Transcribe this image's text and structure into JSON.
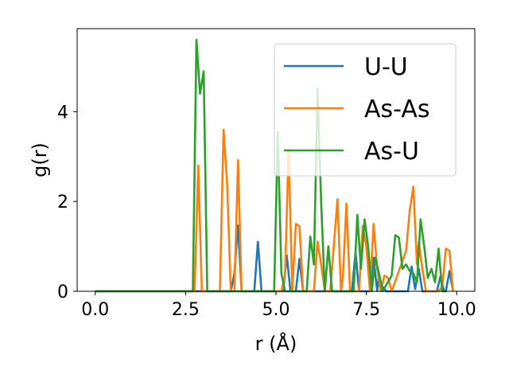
{
  "chart_data": {
    "type": "line",
    "xlabel": "r (Å)",
    "ylabel": "g(r)",
    "xlim": [
      -0.5,
      10.5
    ],
    "ylim": [
      0,
      5.85
    ],
    "x_ticks": [
      0.0,
      2.5,
      5.0,
      7.5,
      10.0
    ],
    "x_tick_labels": [
      "0.0",
      "2.5",
      "5.0",
      "7.5",
      "10.0"
    ],
    "y_ticks": [
      0,
      2,
      4
    ],
    "y_tick_labels": [
      "0",
      "2",
      "4"
    ],
    "grid": false,
    "legend_position": "top-right",
    "series": [
      {
        "name": "U-U",
        "color": "#1f77b4",
        "points": [
          [
            0,
            0
          ],
          [
            3.75,
            0
          ],
          [
            3.85,
            0.4
          ],
          [
            3.95,
            1.47
          ],
          [
            4.05,
            0
          ],
          [
            4.4,
            0
          ],
          [
            4.5,
            1.1
          ],
          [
            4.6,
            0
          ],
          [
            5.2,
            0
          ],
          [
            5.3,
            0.8
          ],
          [
            5.4,
            0
          ],
          [
            5.55,
            0
          ],
          [
            5.65,
            0.72
          ],
          [
            5.75,
            0
          ],
          [
            7.1,
            0
          ],
          [
            7.2,
            0.87
          ],
          [
            7.3,
            0
          ],
          [
            7.6,
            0
          ],
          [
            7.7,
            0.75
          ],
          [
            7.8,
            0
          ],
          [
            7.85,
            0.35
          ],
          [
            7.95,
            0.1
          ],
          [
            8.05,
            0
          ],
          [
            8.65,
            0
          ],
          [
            8.75,
            0.55
          ],
          [
            8.85,
            0.05
          ],
          [
            8.95,
            0.5
          ],
          [
            9.05,
            0
          ],
          [
            9.45,
            0
          ],
          [
            9.55,
            0.33
          ],
          [
            9.65,
            0
          ],
          [
            9.7,
            0
          ],
          [
            9.8,
            0.45
          ],
          [
            9.9,
            0
          ]
        ]
      },
      {
        "name": "As-As",
        "color": "#ff7f0e",
        "points": [
          [
            0,
            0
          ],
          [
            2.75,
            0
          ],
          [
            2.85,
            2.8
          ],
          [
            2.95,
            0
          ],
          [
            3.45,
            0
          ],
          [
            3.55,
            3.6
          ],
          [
            3.65,
            2.4
          ],
          [
            3.75,
            0
          ],
          [
            3.85,
            0
          ],
          [
            3.95,
            2.92
          ],
          [
            4.05,
            0
          ],
          [
            5.15,
            0
          ],
          [
            5.25,
            0.35
          ],
          [
            5.35,
            3.15
          ],
          [
            5.45,
            0
          ],
          [
            5.55,
            1.5
          ],
          [
            5.65,
            1.45
          ],
          [
            5.75,
            0
          ],
          [
            6.05,
            0
          ],
          [
            6.15,
            1.1
          ],
          [
            6.25,
            0.6
          ],
          [
            6.35,
            0
          ],
          [
            6.5,
            0
          ],
          [
            6.6,
            1.0
          ],
          [
            6.7,
            2.05
          ],
          [
            6.8,
            0
          ],
          [
            6.85,
            0.3
          ],
          [
            6.95,
            1.95
          ],
          [
            7.05,
            0
          ],
          [
            7.3,
            0
          ],
          [
            7.4,
            1.45
          ],
          [
            7.5,
            1.0
          ],
          [
            7.6,
            0
          ],
          [
            7.7,
            1.5
          ],
          [
            7.8,
            0.5
          ],
          [
            7.9,
            0
          ],
          [
            8.0,
            0.35
          ],
          [
            8.1,
            0.3
          ],
          [
            8.2,
            0
          ],
          [
            8.6,
            0.9
          ],
          [
            8.7,
            1.8
          ],
          [
            8.8,
            2.33
          ],
          [
            8.9,
            0.6
          ],
          [
            8.95,
            1.1
          ],
          [
            9.05,
            0.5
          ],
          [
            9.15,
            0
          ],
          [
            9.5,
            0
          ],
          [
            9.6,
            0.1
          ],
          [
            9.7,
            0.95
          ],
          [
            9.8,
            0.9
          ],
          [
            9.9,
            0
          ]
        ]
      },
      {
        "name": "As-U",
        "color": "#2ca02c",
        "points": [
          [
            0,
            0
          ],
          [
            2.7,
            0
          ],
          [
            2.8,
            5.6
          ],
          [
            2.9,
            4.4
          ],
          [
            3.0,
            4.9
          ],
          [
            3.1,
            0
          ],
          [
            4.95,
            0
          ],
          [
            5.05,
            3.55
          ],
          [
            5.15,
            0.4
          ],
          [
            5.25,
            0
          ],
          [
            5.85,
            0
          ],
          [
            5.95,
            1.22
          ],
          [
            6.05,
            0.6
          ],
          [
            6.15,
            4.5
          ],
          [
            6.25,
            2.0
          ],
          [
            6.35,
            0
          ],
          [
            6.45,
            1.0
          ],
          [
            6.55,
            0
          ],
          [
            7.15,
            0
          ],
          [
            7.25,
            1.7
          ],
          [
            7.35,
            0.5
          ],
          [
            7.45,
            1.6
          ],
          [
            7.55,
            1.0
          ],
          [
            7.65,
            0
          ],
          [
            7.75,
            0.75
          ],
          [
            7.85,
            0.4
          ],
          [
            7.95,
            0
          ],
          [
            8.2,
            0.35
          ],
          [
            8.3,
            1.25
          ],
          [
            8.4,
            1.2
          ],
          [
            8.5,
            0.5
          ],
          [
            8.6,
            0.6
          ],
          [
            8.7,
            0.45
          ],
          [
            8.8,
            0.4
          ],
          [
            8.9,
            0.2
          ],
          [
            9.0,
            1.6
          ],
          [
            9.1,
            1.0
          ],
          [
            9.2,
            0.3
          ],
          [
            9.3,
            0.5
          ],
          [
            9.4,
            0.2
          ],
          [
            9.5,
            0.95
          ],
          [
            9.6,
            0
          ],
          [
            9.7,
            0
          ]
        ]
      }
    ]
  }
}
